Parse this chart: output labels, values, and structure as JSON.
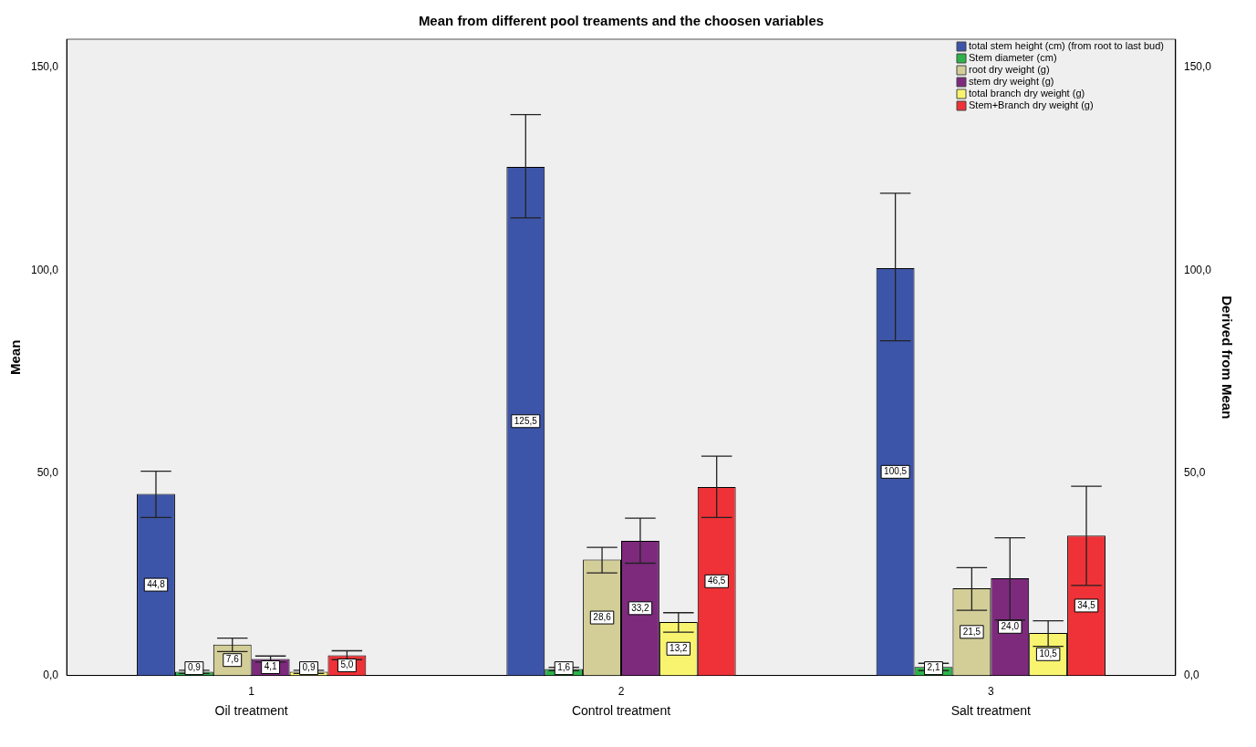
{
  "chart_data": {
    "type": "bar",
    "title": "Mean from different pool treaments and the choosen variables",
    "ylabel": "Mean",
    "y2label": "Derived from Mean",
    "categories": [
      "1",
      "2",
      "3"
    ],
    "annotations": [
      "Oil treatment",
      "Control treatment",
      "Salt treatment"
    ],
    "ylim": [
      0,
      157
    ],
    "yticks": [
      {
        "value": 0,
        "label": "0,0"
      },
      {
        "value": 50,
        "label": "50,0"
      },
      {
        "value": 100,
        "label": "100,0"
      },
      {
        "value": 150,
        "label": "150,0"
      }
    ],
    "y2lim": [
      0,
      157
    ],
    "y2ticks": [
      {
        "value": 0,
        "label": "0,0"
      },
      {
        "value": 50,
        "label": "50,0"
      },
      {
        "value": 100,
        "label": "100,0"
      },
      {
        "value": 150,
        "label": "150,0"
      }
    ],
    "grid": false,
    "legend": "top right",
    "series": [
      {
        "name": "total stem height (cm) (from root to last bud)",
        "color": "#3d55a8",
        "values": [
          44.8,
          125.5,
          100.5
        ],
        "value_labels": [
          "44,8",
          "125,5",
          "100,5"
        ],
        "errors": [
          [
            39.0,
            50.4
          ],
          [
            112.9,
            138.4
          ],
          [
            82.6,
            119.0
          ]
        ]
      },
      {
        "name": "Stem diameter (cm)",
        "color": "#2db34a",
        "values": [
          0.9,
          1.6,
          2.1
        ],
        "value_labels": [
          "0,9",
          "1,6",
          "2,1"
        ],
        "errors": [
          [
            0.5,
            1.3
          ],
          [
            1.2,
            2.0
          ],
          [
            1.2,
            3.0
          ]
        ]
      },
      {
        "name": "root dry weight (g)",
        "color": "#d3ce98",
        "values": [
          7.6,
          28.6,
          21.5
        ],
        "value_labels": [
          "7,6",
          "28,6",
          "21,5"
        ],
        "errors": [
          [
            5.9,
            9.2
          ],
          [
            25.3,
            31.6
          ],
          [
            16.1,
            26.6
          ]
        ]
      },
      {
        "name": "stem dry weight (g)",
        "color": "#7d2a7d",
        "values": [
          4.1,
          33.2,
          24.0
        ],
        "value_labels": [
          "4,1",
          "33,2",
          "24,0"
        ],
        "errors": [
          [
            3.3,
            4.8
          ],
          [
            27.7,
            38.8
          ],
          [
            13.7,
            34.0
          ]
        ]
      },
      {
        "name": "total branch dry weight (g)",
        "color": "#f9f470",
        "values": [
          0.9,
          13.2,
          10.5
        ],
        "value_labels": [
          "0,9",
          "13,2",
          "10,5"
        ],
        "errors": [
          [
            0.5,
            1.3
          ],
          [
            10.7,
            15.5
          ],
          [
            7.2,
            13.5
          ]
        ]
      },
      {
        "name": "Stem+Branch dry weight (g)",
        "color": "#ee3237",
        "values": [
          5.0,
          46.5,
          34.5
        ],
        "value_labels": [
          "5,0",
          "46,5",
          "34,5"
        ],
        "errors": [
          [
            3.9,
            6.1
          ],
          [
            39.0,
            54.1
          ],
          [
            22.2,
            46.7
          ]
        ]
      }
    ]
  }
}
